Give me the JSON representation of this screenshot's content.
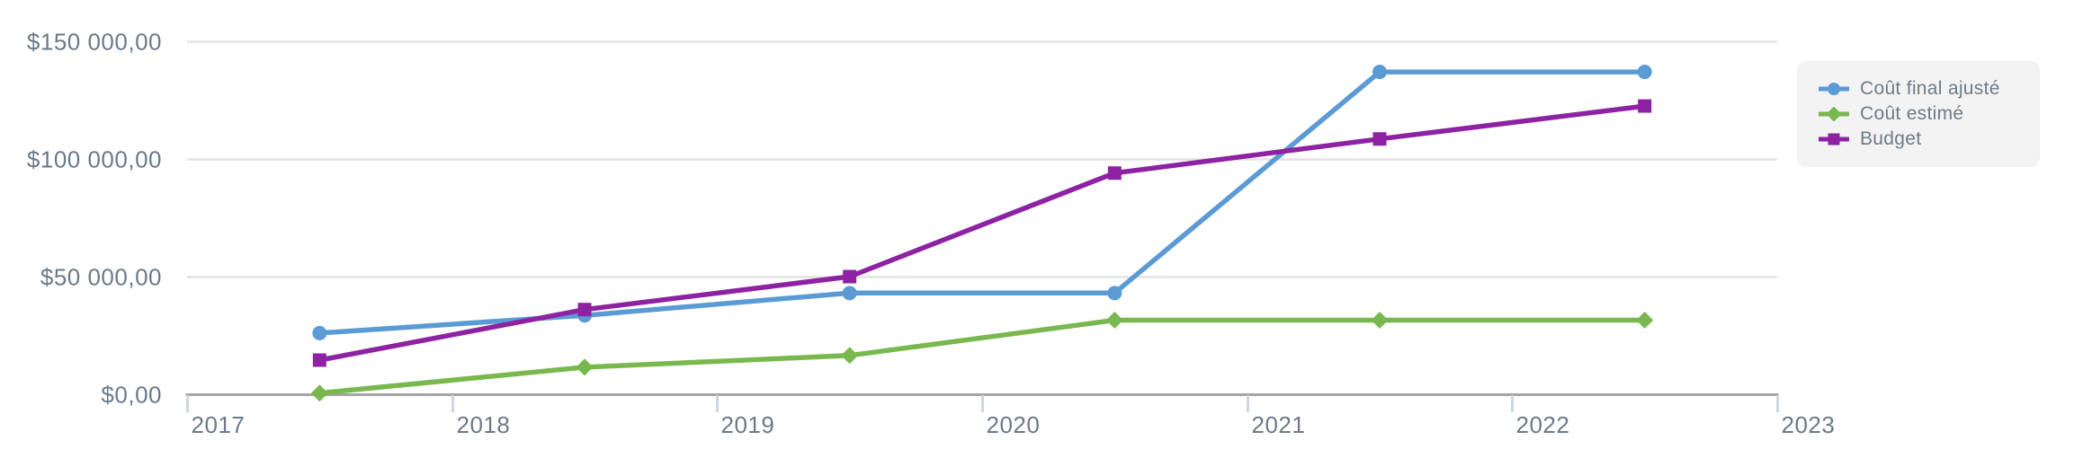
{
  "chart_data": {
    "type": "line",
    "title": "",
    "xlabel": "",
    "ylabel": "",
    "xlim": [
      2017,
      2023
    ],
    "ylim": [
      0,
      150000
    ],
    "grid": "horizontal",
    "legend_position": "right",
    "x": [
      2017.5,
      2018.5,
      2019.5,
      2020.5,
      2021.5,
      2022.5
    ],
    "x_tick_values": [
      2017,
      2018,
      2019,
      2020,
      2021,
      2022,
      2023
    ],
    "x_tick_labels": [
      "2017",
      "2018",
      "2019",
      "2020",
      "2021",
      "2022",
      "2023"
    ],
    "y_ticks": [
      {
        "value": 0,
        "label": "$0,00"
      },
      {
        "value": 50000,
        "label": "$50 000,00"
      },
      {
        "value": 100000,
        "label": "$100 000,00"
      },
      {
        "value": 150000,
        "label": "$150 000,00"
      }
    ],
    "series": [
      {
        "id": "cout-final-ajuste",
        "name": "Coût final ajusté",
        "color": "#5b9bd5",
        "marker": "circle",
        "values": [
          26000,
          33500,
          43000,
          43000,
          137000,
          137000
        ]
      },
      {
        "id": "cout-estime",
        "name": "Coût estimé",
        "color": "#79b84f",
        "marker": "diamond",
        "values": [
          500,
          11500,
          16500,
          31500,
          31500,
          31500
        ]
      },
      {
        "id": "budget",
        "name": "Budget",
        "color": "#8d22a3",
        "marker": "square",
        "values": [
          14500,
          36000,
          50000,
          94000,
          108500,
          122500
        ]
      }
    ]
  },
  "colors": {
    "background": "#ffffff",
    "axis_line": "#a5a5a5",
    "gridline": "#e3e3e3",
    "tick_mark": "#ccd8e4",
    "axis_text": "#6b7a89",
    "legend_text": "#6e7c88",
    "legend_background": "#f3f3f4"
  }
}
